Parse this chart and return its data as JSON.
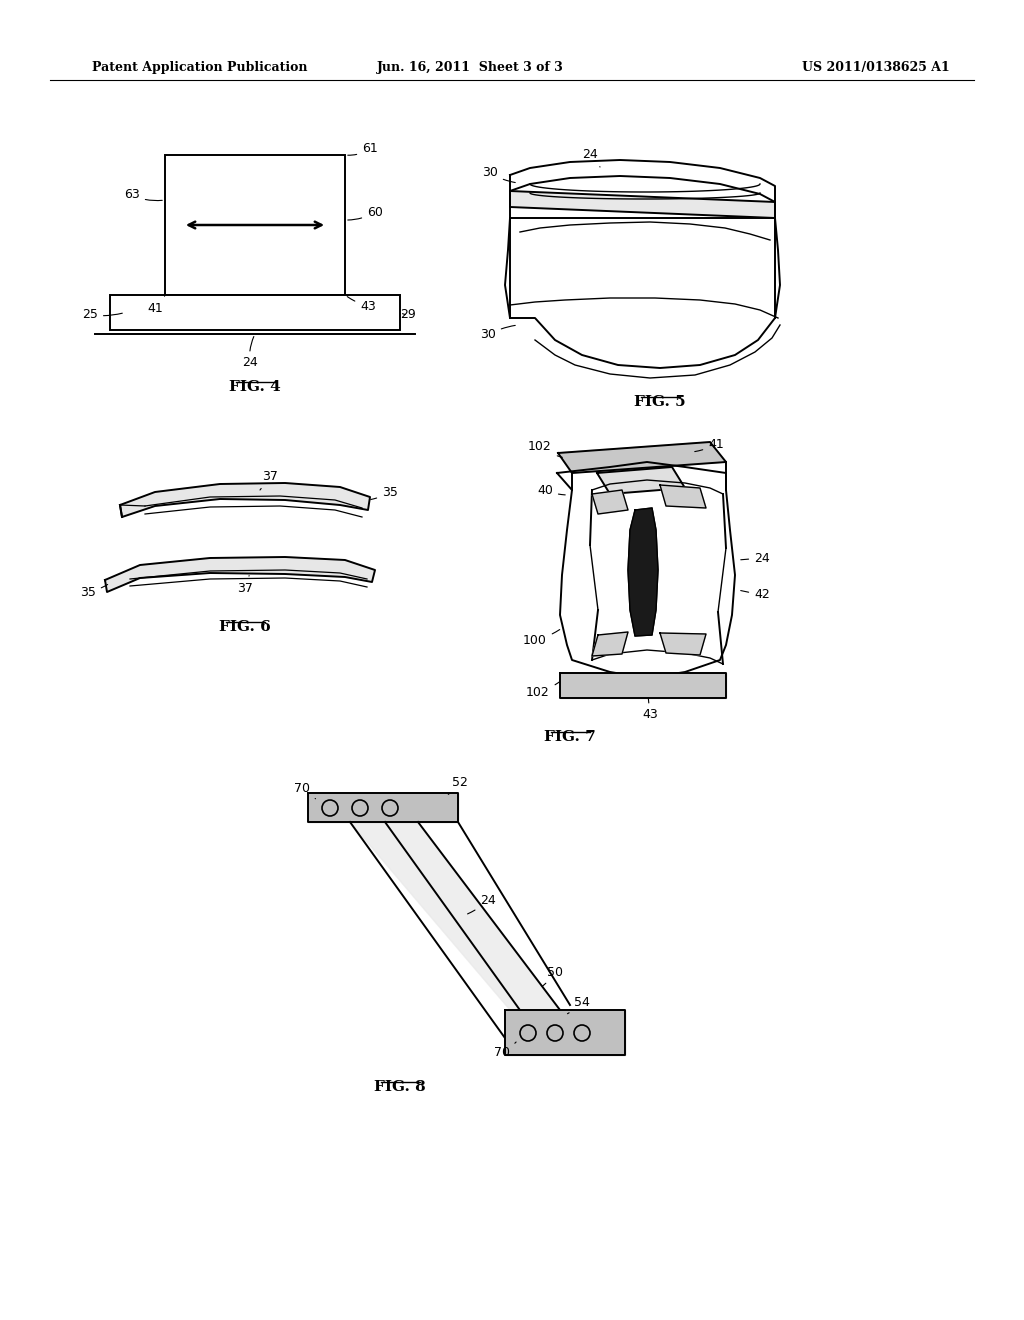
{
  "background_color": "#ffffff",
  "header_left": "Patent Application Publication",
  "header_center": "Jun. 16, 2011  Sheet 3 of 3",
  "header_right": "US 2011/0138625 A1"
}
